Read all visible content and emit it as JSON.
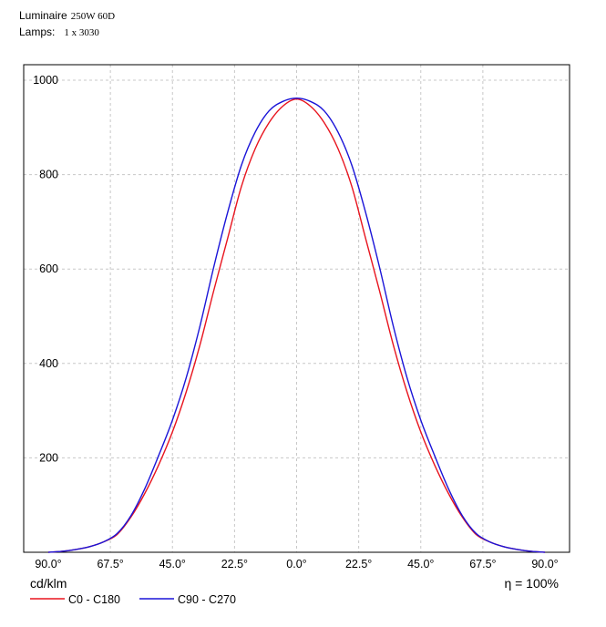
{
  "header": {
    "luminaire_label": "Luminaire",
    "luminaire_value": "250W 60D",
    "lamps_label": "Lamps:",
    "lamps_value": "1 x 3030"
  },
  "chart_data": {
    "type": "line",
    "ylabel": "cd/klm",
    "efficiency": "η = 100%",
    "ylim": [
      0,
      1000
    ],
    "yticks": [
      {
        "label": "1000",
        "value": 1000
      },
      {
        "label": "800",
        "value": 800
      },
      {
        "label": "600",
        "value": 600
      },
      {
        "label": "400",
        "value": 400
      },
      {
        "label": "200",
        "value": 200
      }
    ],
    "xlim": [
      -90,
      90
    ],
    "xticks": [
      {
        "label": "90.0°",
        "value": -90
      },
      {
        "label": "67.5°",
        "value": -67.5
      },
      {
        "label": "45.0°",
        "value": -45
      },
      {
        "label": "22.5°",
        "value": -22.5
      },
      {
        "label": "0.0°",
        "value": 0
      },
      {
        "label": "22.5°",
        "value": 22.5
      },
      {
        "label": "45.0°",
        "value": 45
      },
      {
        "label": "67.5°",
        "value": 67.5
      },
      {
        "label": "90.0°",
        "value": 90
      }
    ],
    "grid": true,
    "legend_position": "bottom-left",
    "series": [
      {
        "name": "C0 - C180",
        "color": "#e8141e",
        "x": [
          -90,
          -85,
          -80,
          -75,
          -70,
          -65,
          -60,
          -55,
          -50,
          -45,
          -40,
          -35,
          -30,
          -25,
          -20,
          -15,
          -10,
          -5,
          0,
          5,
          10,
          15,
          20,
          25,
          30,
          35,
          40,
          45,
          50,
          55,
          60,
          65,
          70,
          75,
          80,
          85,
          90
        ],
        "values": [
          0,
          2,
          6,
          12,
          22,
          38,
          75,
          125,
          185,
          255,
          340,
          440,
          555,
          665,
          775,
          855,
          910,
          945,
          960,
          945,
          910,
          855,
          775,
          665,
          555,
          440,
          340,
          255,
          185,
          125,
          75,
          38,
          22,
          12,
          6,
          2,
          0
        ]
      },
      {
        "name": "C90 - C270",
        "color": "#1a14d8",
        "x": [
          -90,
          -85,
          -80,
          -75,
          -70,
          -65,
          -60,
          -55,
          -50,
          -45,
          -40,
          -35,
          -30,
          -25,
          -20,
          -15,
          -10,
          -5,
          0,
          5,
          10,
          15,
          20,
          25,
          30,
          35,
          40,
          45,
          50,
          55,
          60,
          65,
          70,
          75,
          80,
          85,
          90
        ],
        "values": [
          0,
          2,
          6,
          12,
          22,
          40,
          78,
          135,
          205,
          280,
          370,
          480,
          605,
          720,
          820,
          890,
          935,
          955,
          962,
          955,
          935,
          890,
          820,
          720,
          605,
          480,
          370,
          280,
          205,
          135,
          78,
          40,
          22,
          12,
          6,
          2,
          0
        ]
      }
    ]
  }
}
